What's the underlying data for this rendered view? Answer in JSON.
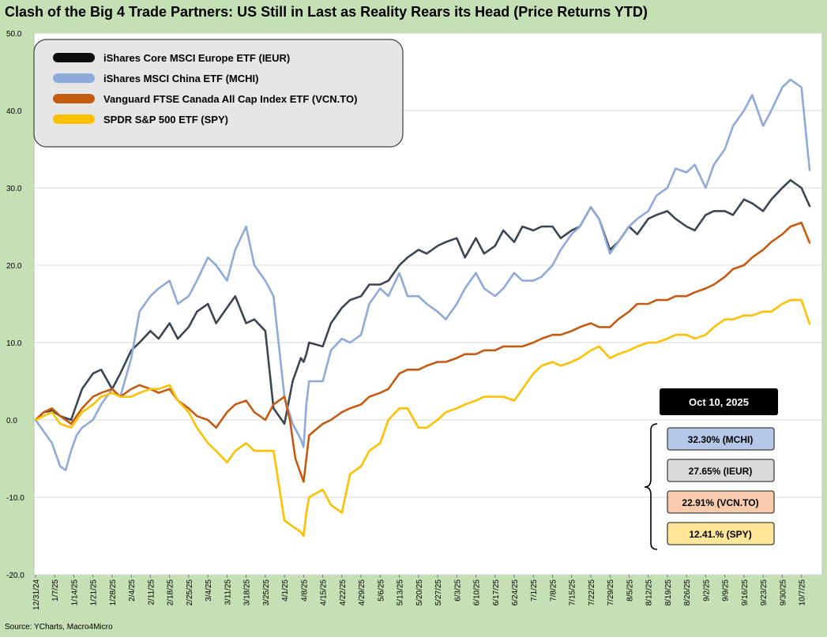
{
  "chart_data": {
    "type": "line",
    "title": "Clash of the Big 4 Trade Partners: US Still in Last as Reality Rears its Head (Price Returns YTD)",
    "source": "Source: YCharts, Macro4Micro",
    "ylim": [
      -20,
      50
    ],
    "yticks": [
      "-20.0",
      "-10.0",
      "0.0",
      "10.0",
      "20.0",
      "30.0",
      "40.0",
      "50.0"
    ],
    "xlim": [
      0,
      283
    ],
    "x_ticks": [
      {
        "label": "12/31/24",
        "day": 0
      },
      {
        "label": "1/7/25",
        "day": 7
      },
      {
        "label": "1/14/25",
        "day": 14
      },
      {
        "label": "1/21/25",
        "day": 21
      },
      {
        "label": "1/28/25",
        "day": 28
      },
      {
        "label": "2/4/25",
        "day": 35
      },
      {
        "label": "2/11/25",
        "day": 42
      },
      {
        "label": "2/18/25",
        "day": 49
      },
      {
        "label": "2/25/25",
        "day": 56
      },
      {
        "label": "3/4/25",
        "day": 63
      },
      {
        "label": "3/11/25",
        "day": 70
      },
      {
        "label": "3/18/25",
        "day": 77
      },
      {
        "label": "3/25/25",
        "day": 84
      },
      {
        "label": "4/1/25",
        "day": 91
      },
      {
        "label": "4/8/25",
        "day": 98
      },
      {
        "label": "4/15/25",
        "day": 105
      },
      {
        "label": "4/22/25",
        "day": 112
      },
      {
        "label": "4/29/25",
        "day": 119
      },
      {
        "label": "5/6/25",
        "day": 126
      },
      {
        "label": "5/13/25",
        "day": 133
      },
      {
        "label": "5/20/25",
        "day": 140
      },
      {
        "label": "5/27/25",
        "day": 147
      },
      {
        "label": "6/3/25",
        "day": 154
      },
      {
        "label": "6/10/25",
        "day": 161
      },
      {
        "label": "6/17/25",
        "day": 168
      },
      {
        "label": "6/24/25",
        "day": 175
      },
      {
        "label": "7/1/25",
        "day": 182
      },
      {
        "label": "7/8/25",
        "day": 189
      },
      {
        "label": "7/15/25",
        "day": 196
      },
      {
        "label": "7/22/25",
        "day": 203
      },
      {
        "label": "7/29/25",
        "day": 210
      },
      {
        "label": "8/5/25",
        "day": 217
      },
      {
        "label": "8/12/25",
        "day": 224
      },
      {
        "label": "8/19/25",
        "day": 231
      },
      {
        "label": "8/26/25",
        "day": 238
      },
      {
        "label": "9/2/25",
        "day": 245
      },
      {
        "label": "9/9/25",
        "day": 252
      },
      {
        "label": "9/16/25",
        "day": 259
      },
      {
        "label": "9/23/25",
        "day": 266
      },
      {
        "label": "9/30/25",
        "day": 273
      },
      {
        "label": "10/7/25",
        "day": 280
      }
    ],
    "series": [
      {
        "name": "iShares Core MSCI Europe ETF (IEUR)",
        "color": "#3b4652",
        "x": [
          0,
          3,
          6,
          9,
          13,
          15,
          17,
          21,
          24,
          28,
          31,
          35,
          38,
          42,
          45,
          49,
          52,
          56,
          59,
          63,
          66,
          70,
          73,
          77,
          80,
          84,
          87,
          91,
          94,
          97,
          98,
          99,
          100,
          105,
          108,
          112,
          115,
          119,
          122,
          126,
          129,
          133,
          136,
          140,
          143,
          147,
          150,
          154,
          157,
          161,
          164,
          168,
          171,
          175,
          178,
          182,
          185,
          189,
          192,
          196,
          199,
          203,
          206,
          210,
          213,
          217,
          220,
          224,
          227,
          231,
          234,
          238,
          241,
          245,
          248,
          252,
          255,
          259,
          262,
          266,
          269,
          273,
          276,
          280,
          283
        ],
        "values": [
          0,
          1,
          1.2,
          0.5,
          0,
          2,
          4,
          6,
          6.5,
          4,
          6,
          9,
          10,
          11.5,
          10.5,
          12.5,
          10.5,
          12,
          14,
          15,
          12.5,
          14.5,
          16,
          12.5,
          13,
          11.5,
          1.5,
          -0.5,
          5,
          8,
          7.5,
          8.5,
          10,
          9.5,
          12.5,
          14.5,
          15.5,
          16,
          17.5,
          17.5,
          18,
          20,
          21,
          22,
          21.5,
          22.5,
          23,
          23.5,
          21,
          23.5,
          21.5,
          22.5,
          24.5,
          23,
          25,
          24.5,
          25,
          25,
          23.5,
          24.5,
          25,
          27.5,
          26,
          22,
          23,
          25,
          24,
          26,
          26.5,
          27,
          26,
          25,
          24.5,
          26.5,
          27,
          27,
          26.5,
          28.5,
          28,
          27,
          28.5,
          30,
          31,
          30,
          27.65
        ]
      },
      {
        "name": "iShares MSCI China ETF (MCHI)",
        "color": "#8eaadb",
        "x": [
          0,
          3,
          6,
          9,
          11,
          13,
          15,
          17,
          21,
          24,
          28,
          31,
          35,
          38,
          42,
          45,
          49,
          52,
          56,
          59,
          63,
          66,
          70,
          73,
          77,
          80,
          84,
          87,
          91,
          94,
          97,
          98,
          99,
          100,
          105,
          108,
          112,
          115,
          119,
          122,
          126,
          129,
          133,
          136,
          140,
          143,
          147,
          150,
          154,
          157,
          161,
          164,
          168,
          171,
          175,
          178,
          182,
          185,
          189,
          192,
          196,
          199,
          203,
          206,
          210,
          213,
          217,
          220,
          224,
          227,
          231,
          234,
          238,
          241,
          245,
          248,
          252,
          255,
          259,
          262,
          266,
          269,
          273,
          276,
          280,
          283
        ],
        "values": [
          0,
          -1.5,
          -3,
          -6,
          -6.5,
          -4,
          -2,
          -1,
          0,
          2,
          4,
          3,
          8,
          14,
          16,
          17,
          18,
          15,
          16,
          18,
          21,
          20,
          18,
          22,
          25,
          20,
          18,
          16,
          3,
          -0.5,
          -2.5,
          -3.5,
          2,
          5,
          5,
          9,
          10.5,
          10,
          11,
          15,
          17,
          16,
          19,
          16,
          16,
          15,
          14,
          13,
          15,
          17,
          19,
          17,
          16,
          17,
          19,
          18,
          18,
          18.5,
          20,
          22,
          24,
          25,
          27.5,
          26,
          21.5,
          23,
          25,
          26,
          27,
          29,
          30,
          32.5,
          32,
          33,
          30,
          33,
          35,
          38,
          40,
          42,
          38,
          40,
          43,
          44,
          43,
          32.3
        ]
      },
      {
        "name": "Vanguard FTSE Canada All Cap Index ETF (VCN.TO)",
        "color": "#c55a11",
        "x": [
          0,
          3,
          6,
          9,
          13,
          15,
          17,
          21,
          24,
          28,
          31,
          35,
          38,
          42,
          45,
          49,
          52,
          56,
          59,
          63,
          66,
          70,
          73,
          77,
          80,
          84,
          87,
          91,
          93,
          95,
          97,
          98,
          99,
          100,
          105,
          108,
          112,
          115,
          119,
          122,
          126,
          129,
          133,
          136,
          140,
          143,
          147,
          150,
          154,
          157,
          161,
          164,
          168,
          171,
          175,
          178,
          182,
          185,
          189,
          192,
          196,
          199,
          203,
          206,
          210,
          213,
          217,
          220,
          224,
          227,
          231,
          234,
          238,
          241,
          245,
          248,
          252,
          255,
          259,
          262,
          266,
          269,
          273,
          276,
          280,
          283
        ],
        "values": [
          0,
          1,
          1.5,
          0.5,
          -0.5,
          0.5,
          1.5,
          3,
          3.5,
          4,
          3,
          4,
          4.5,
          4,
          3.5,
          4,
          2.5,
          1.5,
          0.5,
          0,
          -1,
          1,
          2,
          2.5,
          1,
          0,
          2,
          3,
          0,
          -5,
          -7,
          -8,
          -5,
          -2,
          -0.5,
          0,
          1,
          1.5,
          2,
          3,
          3.5,
          4,
          6,
          6.5,
          6.5,
          7,
          7.5,
          7.5,
          8,
          8.5,
          8.5,
          9,
          9,
          9.5,
          9.5,
          9.5,
          10,
          10.5,
          11,
          11,
          11.5,
          12,
          12.5,
          12,
          12,
          13,
          14,
          15,
          15,
          15.5,
          15.5,
          16,
          16,
          16.5,
          17,
          17.5,
          18.5,
          19.5,
          20,
          21,
          22,
          23,
          24,
          25,
          25.5,
          22.91
        ]
      },
      {
        "name": "SPDR S&P 500 ETF (SPY)",
        "color": "#ffc000",
        "x": [
          0,
          3,
          6,
          9,
          13,
          15,
          17,
          21,
          24,
          28,
          31,
          35,
          38,
          42,
          45,
          49,
          52,
          56,
          59,
          63,
          66,
          70,
          73,
          77,
          80,
          84,
          87,
          91,
          93,
          95,
          97,
          98,
          99,
          100,
          105,
          108,
          112,
          115,
          119,
          122,
          126,
          129,
          133,
          136,
          140,
          143,
          147,
          150,
          154,
          157,
          161,
          164,
          168,
          171,
          175,
          178,
          182,
          185,
          189,
          192,
          196,
          199,
          203,
          206,
          210,
          213,
          217,
          220,
          224,
          227,
          231,
          234,
          238,
          241,
          245,
          248,
          252,
          255,
          259,
          262,
          266,
          269,
          273,
          276,
          280,
          283
        ],
        "values": [
          0,
          0.5,
          1,
          -0.5,
          -1,
          0,
          1,
          2,
          3,
          3.5,
          3,
          3,
          3.5,
          4,
          4,
          4.5,
          2.5,
          1,
          -1,
          -3,
          -4,
          -5.5,
          -4,
          -3,
          -4,
          -4,
          -4,
          -13,
          -13.5,
          -14,
          -14.5,
          -15,
          -12,
          -10,
          -9,
          -11,
          -12,
          -7,
          -6,
          -4,
          -3,
          0,
          1.5,
          1.5,
          -1,
          -1,
          0,
          1,
          1.5,
          2,
          2.5,
          3,
          3,
          3,
          2.5,
          4,
          6,
          7,
          7.5,
          7,
          7.5,
          8,
          9,
          9.5,
          8,
          8.5,
          9,
          9.5,
          10,
          10,
          10.5,
          11,
          11,
          10.5,
          11,
          12,
          13,
          13,
          13.5,
          13.5,
          14,
          14,
          15,
          15.5,
          15.5,
          12.41
        ]
      }
    ],
    "legend": [
      {
        "label": "iShares Core MSCI Europe ETF (IEUR)",
        "color": "#0d0d0d"
      },
      {
        "label": "iShares MSCI China ETF (MCHI)",
        "color": "#8eaadb"
      },
      {
        "label": "Vanguard FTSE Canada All Cap Index ETF (VCN.TO)",
        "color": "#c55a11"
      },
      {
        "label": "SPDR S&P 500 ETF (SPY)",
        "color": "#ffc000"
      }
    ],
    "date_label": "Oct 10, 2025",
    "callouts": [
      {
        "text": "32.30% (MCHI)",
        "fill": "#b4c7e7"
      },
      {
        "text": "27.65% (IEUR)",
        "fill": "#d9d9d9"
      },
      {
        "text": "22.91% (VCN.TO)",
        "fill": "#f8cbad"
      },
      {
        "text": "12.41.% (SPY)",
        "fill": "#ffe699"
      }
    ]
  }
}
